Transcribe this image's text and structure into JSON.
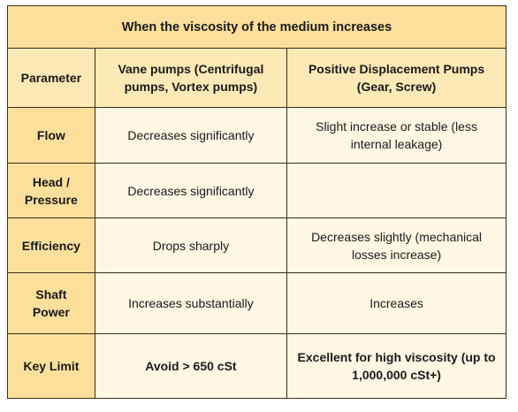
{
  "title": "When the viscosity of the medium increases",
  "headers": {
    "parameter": "Parameter",
    "vane": "Vane pumps (Centrifugal pumps, Vortex pumps)",
    "positive_displacement": "Positive Displacement Pumps (Gear, Screw)"
  },
  "rows": [
    {
      "parameter": "Flow",
      "vane": "Decreases significantly",
      "positive_displacement": "Slight increase or stable (less internal leakage)"
    },
    {
      "parameter": "Head / Pressure",
      "vane": "Decreases significantly",
      "positive_displacement": ""
    },
    {
      "parameter": "Efficiency",
      "vane": "Drops sharply",
      "positive_displacement": "Decreases slightly (mechanical losses increase)"
    },
    {
      "parameter": "Shaft Power",
      "vane": "Increases substantially",
      "positive_displacement": "Increases"
    },
    {
      "parameter": "Key Limit",
      "vane": "Avoid > 650 cSt",
      "positive_displacement": "Excellent for high viscosity (up to 1,000,000 cSt+)"
    }
  ],
  "colors": {
    "title_bg": "#fbdf9b",
    "header_bg": "#fde9b6",
    "param_bg": "#fbdf9b",
    "value_bg": "#fef7e3",
    "border": "#3a2e1a"
  }
}
